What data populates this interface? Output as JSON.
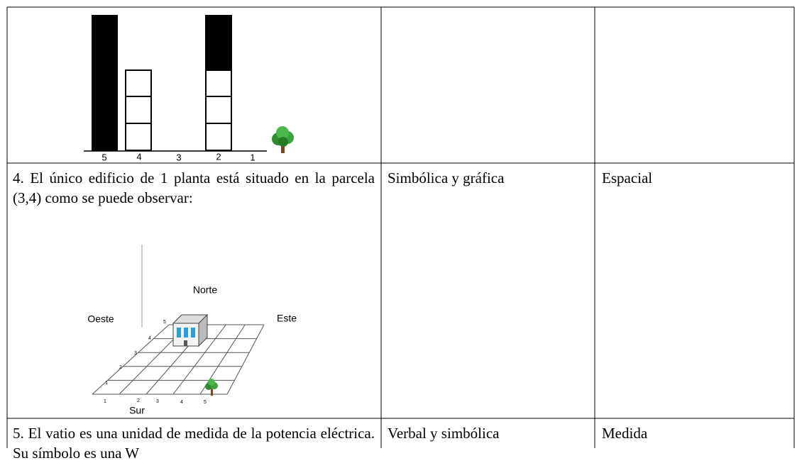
{
  "table": {
    "rows": [
      {
        "figure": {
          "plot_labels": [
            5,
            4,
            3,
            2,
            1
          ]
        }
      },
      {
        "text": "4. El único edificio de 1 planta está situado en la parcela (3,4) como se puede observar:",
        "figure": {
          "north": "Norte",
          "west": "Oeste",
          "east": "Este",
          "south": "Sur",
          "row_numbers": [
            5,
            4,
            3,
            2,
            1
          ],
          "col_numbers": [
            1,
            2,
            3,
            4,
            5
          ]
        },
        "representation": "Simbólica y gráfica",
        "content": "Espacial"
      },
      {
        "text": "5. El vatio es una unidad de medida de la potencia eléctrica. Su símbolo es una W",
        "representation": "Verbal y simbólica",
        "content": "Medida"
      }
    ]
  }
}
